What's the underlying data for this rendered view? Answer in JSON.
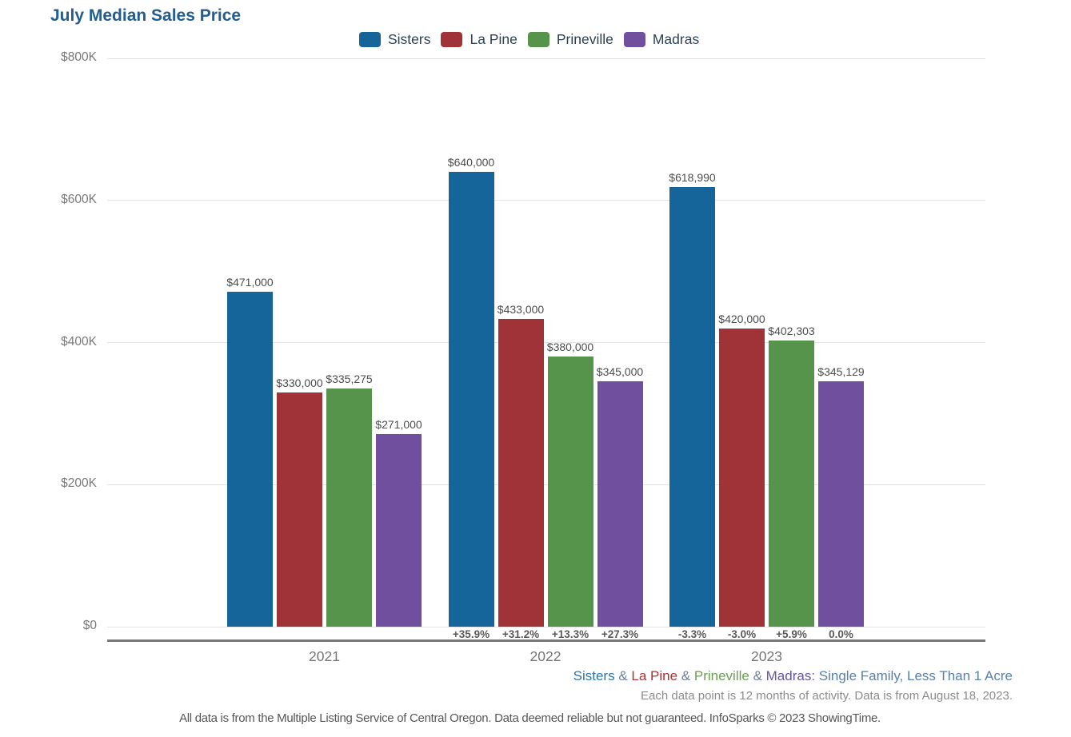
{
  "title": "July Median Sales Price",
  "legend": {
    "items": [
      {
        "label": "Sisters",
        "color": "#15649a"
      },
      {
        "label": "La Pine",
        "color": "#a03337"
      },
      {
        "label": "Prineville",
        "color": "#55944a"
      },
      {
        "label": "Madras",
        "color": "#6f4f9e"
      }
    ]
  },
  "chart_data": {
    "type": "bar",
    "title": "July Median Sales Price",
    "categories": [
      "2021",
      "2022",
      "2023"
    ],
    "series": [
      {
        "name": "Sisters",
        "color": "#15649a",
        "values": [
          471000,
          640000,
          618990
        ],
        "value_labels": [
          "$471,000",
          "$640,000",
          "$618,990"
        ],
        "pct_change": [
          null,
          "+35.9%",
          "-3.3%"
        ]
      },
      {
        "name": "La Pine",
        "color": "#a03337",
        "values": [
          330000,
          433000,
          420000
        ],
        "value_labels": [
          "$330,000",
          "$433,000",
          "$420,000"
        ],
        "pct_change": [
          null,
          "+31.2%",
          "-3.0%"
        ]
      },
      {
        "name": "Prineville",
        "color": "#55944a",
        "values": [
          335275,
          380000,
          402303
        ],
        "value_labels": [
          "$335,275",
          "$380,000",
          "$402,303"
        ],
        "pct_change": [
          null,
          "+13.3%",
          "+5.9%"
        ]
      },
      {
        "name": "Madras",
        "color": "#6f4f9e",
        "values": [
          271000,
          345000,
          345129
        ],
        "value_labels": [
          "$271,000",
          "$345,000",
          "$345,129"
        ],
        "pct_change": [
          null,
          "+27.3%",
          "0.0%"
        ]
      }
    ],
    "y_axis": {
      "ylim": [
        0,
        800000
      ],
      "ticks": [
        {
          "value": 0,
          "label": "$0"
        },
        {
          "value": 200000,
          "label": "$200K"
        },
        {
          "value": 400000,
          "label": "$400K"
        },
        {
          "value": 600000,
          "label": "$600K"
        },
        {
          "value": 800000,
          "label": "$800K"
        }
      ]
    },
    "grid": true,
    "legend_position": "top"
  },
  "footnotes": {
    "criteria_segments": [
      {
        "text": "Sisters",
        "color": "#2e74a6"
      },
      {
        "text": " & ",
        "color": "#6b7f99"
      },
      {
        "text": "La Pine",
        "color": "#ab3236"
      },
      {
        "text": " & ",
        "color": "#6b7f99"
      },
      {
        "text": "Prineville",
        "color": "#6b9e52"
      },
      {
        "text": " & ",
        "color": "#6b7f99"
      },
      {
        "text": "Madras:",
        "color": "#6355a0"
      },
      {
        "text": " Single Family, Less Than 1 Acre",
        "color": "#5880ab"
      }
    ],
    "activity_note": "Each data point is 12 months of activity. Data is from August 18, 2023.",
    "disclaimer": "All data is from the Multiple Listing Service of Central Oregon. Data deemed reliable but not guaranteed. InfoSparks © 2023 ShowingTime."
  }
}
